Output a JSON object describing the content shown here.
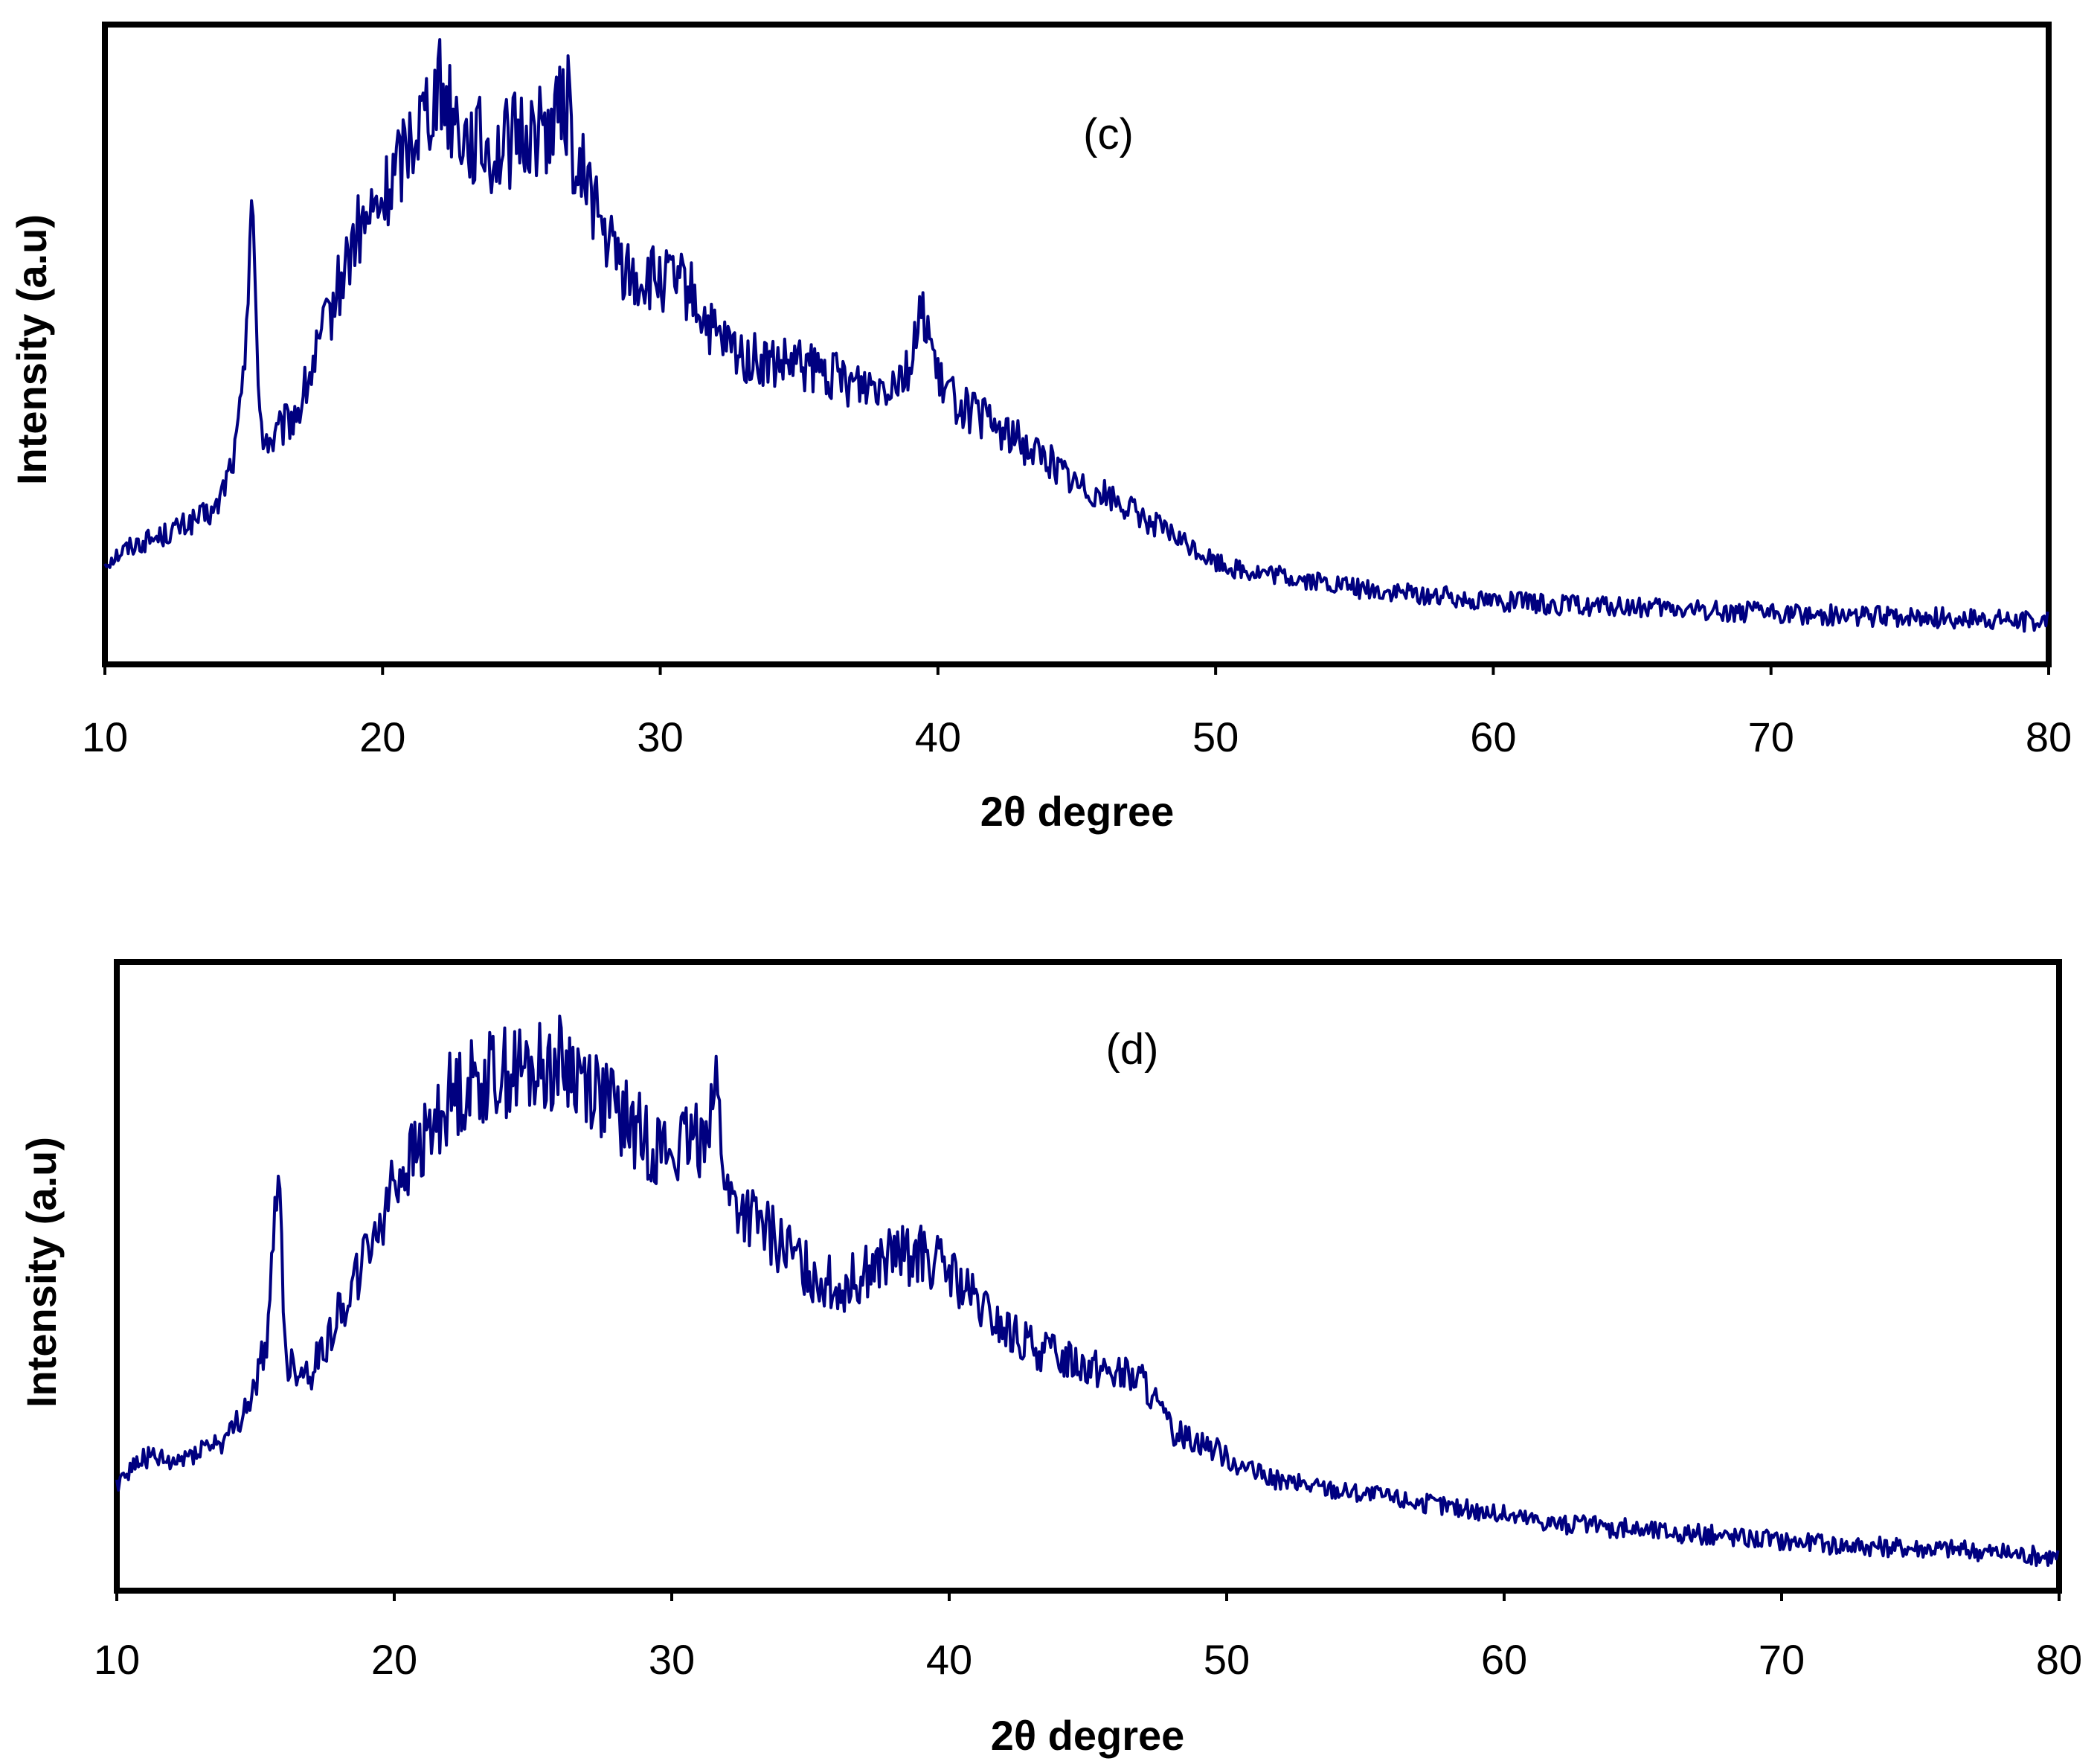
{
  "chart_data": [
    {
      "type": "line",
      "panel_label": "(c)",
      "xlabel": "2θ degree",
      "ylabel": "Intensity (a.u)",
      "xlim": [
        10,
        80
      ],
      "x_ticks": [
        "10",
        "20",
        "30",
        "40",
        "50",
        "60",
        "70",
        "80"
      ],
      "y_ticks_shown": false,
      "grid": false,
      "color": "#000080",
      "series": [
        {
          "x": [
            10,
            11,
            12,
            13,
            14,
            14.7,
            15,
            15.3,
            15.5,
            15.7,
            16,
            17,
            18,
            19,
            20,
            21,
            22,
            23,
            24,
            25,
            26,
            26.7,
            27,
            27.3,
            28,
            29,
            30,
            31,
            32,
            33,
            34,
            35,
            36,
            37,
            38,
            39,
            39.5,
            40,
            41,
            42,
            43,
            44,
            45,
            46,
            47,
            48,
            49,
            50,
            51,
            52,
            53,
            54,
            55,
            56,
            58,
            60,
            62,
            64,
            66,
            68,
            70,
            72,
            74,
            76,
            78,
            80
          ],
          "y": [
            12,
            14,
            15,
            16.5,
            18,
            25,
            33,
            58,
            32,
            27,
            26,
            30,
            40,
            50,
            54,
            62,
            68,
            62,
            60,
            62,
            63,
            66,
            55,
            58,
            50,
            45,
            45,
            44,
            38,
            36,
            35,
            35,
            34,
            33,
            33,
            35,
            42,
            33,
            30,
            28,
            26,
            24,
            21,
            20,
            18,
            16,
            14,
            12,
            11,
            10.5,
            10,
            9.5,
            9,
            8.5,
            8,
            7.5,
            7,
            6.8,
            6.5,
            6.3,
            6,
            5.8,
            5.6,
            5.5,
            5.2,
            5
          ]
        }
      ]
    },
    {
      "type": "line",
      "panel_label": "(d)",
      "xlabel": "2θ degree",
      "ylabel": "Intensity (a.u)",
      "xlim": [
        10,
        80
      ],
      "x_ticks": [
        "10",
        "20",
        "30",
        "40",
        "50",
        "60",
        "70",
        "80"
      ],
      "y_ticks_shown": false,
      "grid": false,
      "color": "#000080",
      "series": [
        {
          "x": [
            10,
            11,
            12,
            13,
            14,
            15,
            15.5,
            15.8,
            16.1,
            17,
            18,
            19,
            20,
            21,
            22,
            23,
            24,
            25,
            26,
            27,
            28,
            29,
            30,
            31,
            31.6,
            32,
            33,
            34,
            35,
            36,
            37,
            38,
            39,
            40,
            41,
            42,
            43,
            44,
            45,
            46,
            47,
            47.5,
            48,
            49,
            50,
            51,
            52,
            53,
            54,
            55,
            56,
            58,
            60,
            62,
            64,
            66,
            68,
            70,
            72,
            74,
            76,
            78,
            80
          ],
          "y": [
            13,
            16,
            15,
            17,
            18,
            24,
            32,
            52,
            27,
            26,
            33,
            40,
            49,
            53,
            59,
            61,
            62,
            62,
            63,
            61,
            57,
            54,
            52,
            54,
            60,
            47,
            44,
            41,
            38,
            36,
            38,
            40,
            40,
            38,
            34,
            31,
            29,
            28,
            27,
            26,
            25,
            22,
            19,
            18,
            16,
            14,
            13,
            12.5,
            12,
            11.5,
            11,
            10,
            9,
            8,
            7.5,
            7,
            6.5,
            6,
            5.5,
            5.2,
            5,
            4.5,
            4
          ]
        }
      ]
    }
  ]
}
